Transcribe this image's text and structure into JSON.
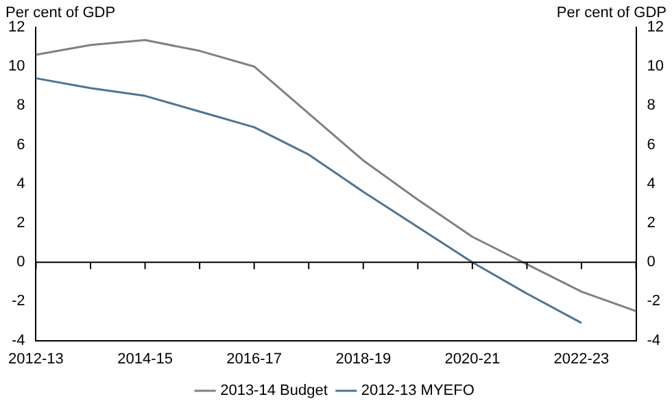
{
  "chart_data": {
    "type": "line",
    "ylabel": "Per cent of GDP",
    "y2label": "Per cent of GDP",
    "categories": [
      "2012-13",
      null,
      "2014-15",
      null,
      "2016-17",
      null,
      "2018-19",
      null,
      "2020-21",
      null,
      "2022-23",
      null
    ],
    "series": [
      {
        "name": "2013-14 Budget",
        "color": "#808080",
        "values": [
          10.6,
          11.1,
          11.35,
          10.8,
          10.0,
          7.6,
          5.2,
          3.2,
          1.3,
          -0.1,
          -1.5,
          -2.5
        ]
      },
      {
        "name": "2012-13 MYEFO",
        "color": "#4f7391",
        "values": [
          9.4,
          8.9,
          8.5,
          7.7,
          6.9,
          5.5,
          3.6,
          1.8,
          0.0,
          -1.6,
          -3.1,
          null
        ]
      }
    ],
    "ylim": [
      -4,
      12
    ],
    "yticks": [
      -4,
      -2,
      0,
      2,
      4,
      6,
      8,
      10,
      12
    ],
    "y2lim": [
      -4,
      12
    ],
    "y2ticks": [
      -4,
      -2,
      0,
      2,
      4,
      6,
      8,
      10,
      12
    ],
    "ref_lines": [
      {
        "axis": "y",
        "value": 0,
        "color": "#000000"
      }
    ],
    "grid": false,
    "legend": "bottom",
    "marker": "none",
    "line_style": "solid"
  }
}
